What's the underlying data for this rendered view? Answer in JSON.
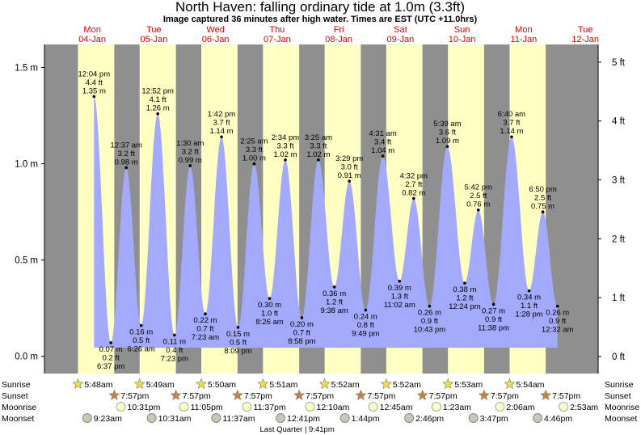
{
  "chart_data": {
    "type": "tide",
    "title": "North Haven: falling  ordinary tide at 1.0m (3.3ft)",
    "subtitle": "Image captured 36 minutes after high water. Times are EST (UTC +11.0hrs)",
    "ylim": [
      -0.09,
      1.62
    ],
    "yticks": [
      {
        "value": 0,
        "label": "0.0 m"
      },
      {
        "value": 0.5,
        "label": "0.5 m"
      },
      {
        "value": 1,
        "label": "1.0 m"
      },
      {
        "value": 1.5,
        "label": "1.5 m"
      }
    ],
    "y2lim": [
      -0.29,
      5.3
    ],
    "y2ticks": [
      {
        "value": 0,
        "label": "0 ft"
      },
      {
        "value": 1,
        "label": "1 ft"
      },
      {
        "value": 2,
        "label": "2 ft"
      },
      {
        "value": 3,
        "label": "3 ft"
      },
      {
        "value": 4,
        "label": "4 ft"
      },
      {
        "value": 5,
        "label": "5 ft"
      }
    ],
    "night_color": "#8f8f8f",
    "day_color": "#ffffc4",
    "tide_color": "#a3a9fb",
    "day_label_color": "#e00000",
    "row_labels": [
      "Sunrise",
      "Sunset",
      "Moonrise",
      "Moonset"
    ],
    "days": [
      {
        "weekday": "Mon",
        "date": "04-Jan",
        "sunrise": "5:48am",
        "sunset": "7:57pm",
        "moonrise": "10:31pm",
        "moonset": "9:23am",
        "tides": [
          {
            "time": "12:04 pm",
            "feet": "4.4 ft",
            "height": 1.35,
            "value_label": "1.35 m"
          },
          {
            "time": "6:37 pm",
            "feet": "0.2 ft",
            "height": 0.07,
            "value_label": "0.07 m"
          }
        ]
      },
      {
        "weekday": "Tue",
        "date": "05-Jan",
        "sunrise": "5:49am",
        "sunset": "7:57pm",
        "moonrise": "11:05pm",
        "moonset": "10:31am",
        "tides": [
          {
            "time": "12:37 am",
            "feet": "3.2 ft",
            "height": 0.98,
            "value_label": "0.98 m"
          },
          {
            "time": "6:26 am",
            "feet": "0.5 ft",
            "height": 0.16,
            "value_label": "0.16 m"
          },
          {
            "time": "12:52 pm",
            "feet": "4.1 ft",
            "height": 1.26,
            "value_label": "1.26 m"
          },
          {
            "time": "7:23 pm",
            "feet": "0.4 ft",
            "height": 0.11,
            "value_label": "0.11 m"
          }
        ]
      },
      {
        "weekday": "Wed",
        "date": "06-Jan",
        "sunrise": "5:50am",
        "sunset": "7:57pm",
        "moonrise": "11:37pm",
        "moonset": "11:37am",
        "tides": [
          {
            "time": "1:30 am",
            "feet": "3.2 ft",
            "height": 0.99,
            "value_label": "0.99 m"
          },
          {
            "time": "7:23 am",
            "feet": "0.7 ft",
            "height": 0.22,
            "value_label": "0.22 m"
          },
          {
            "time": "1:42 pm",
            "feet": "3.7 ft",
            "height": 1.14,
            "value_label": "1.14 m"
          },
          {
            "time": "8:09 pm",
            "feet": "0.5 ft",
            "height": 0.15,
            "value_label": "0.15 m"
          }
        ]
      },
      {
        "weekday": "Thu",
        "date": "07-Jan",
        "sunrise": "5:51am",
        "sunset": "7:57pm",
        "moonset": "12:41pm",
        "moon_phase": "Last Quarter | 9:41pm",
        "tides": [
          {
            "time": "2:25 am",
            "feet": "3.3 ft",
            "height": 1.0,
            "value_label": "1.00 m"
          },
          {
            "time": "8:26 am",
            "feet": "1.0 ft",
            "height": 0.3,
            "value_label": "0.30 m"
          },
          {
            "time": "2:34 pm",
            "feet": "3.3 ft",
            "height": 1.02,
            "value_label": "1.02 m"
          },
          {
            "time": "8:58 pm",
            "feet": "0.7 ft",
            "height": 0.2,
            "value_label": "0.20 m"
          }
        ]
      },
      {
        "weekday": "Fri",
        "date": "08-Jan",
        "sunrise": "5:52am",
        "sunset": "7:57pm",
        "moonrise": "12:10am",
        "moonset": "1:44pm",
        "tides": [
          {
            "time": "3:25 am",
            "feet": "3.3 ft",
            "height": 1.02,
            "value_label": "1.02 m"
          },
          {
            "time": "9:38 am",
            "feet": "1.2 ft",
            "height": 0.36,
            "value_label": "0.36 m"
          },
          {
            "time": "3:29 pm",
            "feet": "3.0 ft",
            "height": 0.91,
            "value_label": "0.91 m"
          },
          {
            "time": "9:49 pm",
            "feet": "0.8 ft",
            "height": 0.24,
            "value_label": "0.24 m"
          }
        ]
      },
      {
        "weekday": "Sat",
        "date": "09-Jan",
        "sunrise": "5:52am",
        "sunset": "7:57pm",
        "moonrise": "12:45am",
        "moonset": "2:46pm",
        "tides": [
          {
            "time": "4:31 am",
            "feet": "3.4 ft",
            "height": 1.04,
            "value_label": "1.04 m"
          },
          {
            "time": "11:02 am",
            "feet": "1.3 ft",
            "height": 0.39,
            "value_label": "0.39 m"
          },
          {
            "time": "4:32 pm",
            "feet": "2.7 ft",
            "height": 0.82,
            "value_label": "0.82 m"
          },
          {
            "time": "10:43 pm",
            "feet": "0.9 ft",
            "height": 0.26,
            "value_label": "0.26 m"
          }
        ]
      },
      {
        "weekday": "Sun",
        "date": "10-Jan",
        "sunrise": "5:53am",
        "sunset": "7:57pm",
        "moonrise": "1:23am",
        "moonset": "3:47pm",
        "tides": [
          {
            "time": "5:39 am",
            "feet": "3.6 ft",
            "height": 1.09,
            "value_label": "1.09 m"
          },
          {
            "time": "12:24 pm",
            "feet": "1.2 ft",
            "height": 0.38,
            "value_label": "0.38 m"
          },
          {
            "time": "5:42 pm",
            "feet": "2.5 ft",
            "height": 0.76,
            "value_label": "0.76 m"
          },
          {
            "time": "11:38 pm",
            "feet": "0.9 ft",
            "height": 0.27,
            "value_label": "0.27 m"
          }
        ]
      },
      {
        "weekday": "Mon",
        "date": "11-Jan",
        "sunrise": "5:54am",
        "sunset": "7:57pm",
        "moonrise": "2:06am",
        "moonset": "4:46pm",
        "tides": [
          {
            "time": "6:40 am",
            "feet": "3.7 ft",
            "height": 1.14,
            "value_label": "1.14 m"
          },
          {
            "time": "1:28 pm",
            "feet": "1.1 ft",
            "height": 0.34,
            "value_label": "0.34 m"
          },
          {
            "time": "6:50 pm",
            "feet": "2.5 ft",
            "height": 0.75,
            "value_label": "0.75 m"
          }
        ]
      },
      {
        "weekday": "Tue",
        "date": "12-Jan",
        "moonrise": "2:53am",
        "tides": [
          {
            "time": "12:32 am",
            "feet": "0.9 ft",
            "height": 0.26,
            "value_label": "0.26 m"
          }
        ]
      }
    ]
  }
}
